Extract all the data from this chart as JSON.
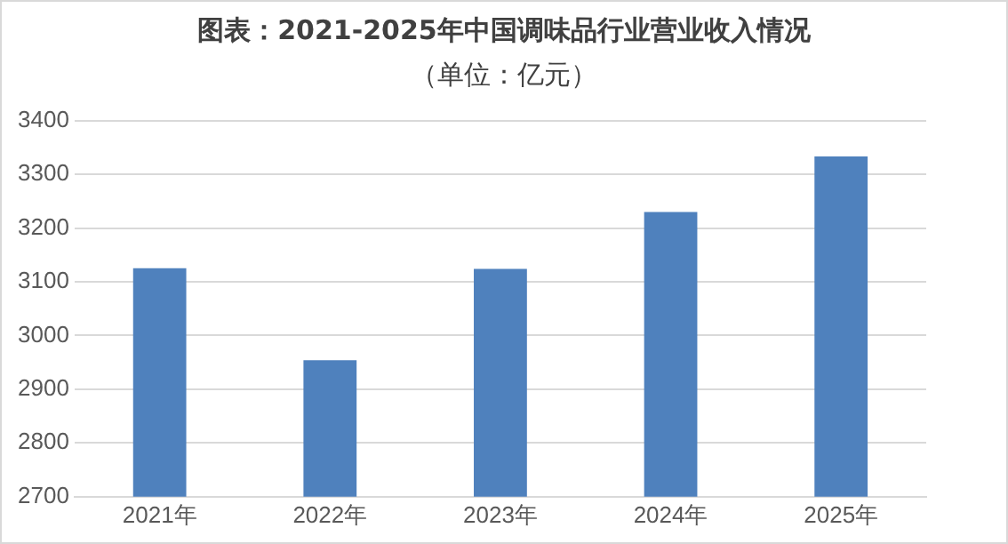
{
  "chart_data": {
    "type": "bar",
    "title": "图表：2021-2025年中国调味品行业营业收入情况",
    "subtitle": "（单位：亿元）",
    "categories": [
      "2021年",
      "2022年",
      "2023年",
      "2024年",
      "2025年"
    ],
    "values": [
      3125,
      2954,
      3124,
      3230,
      3333
    ],
    "color": "#4f81bd",
    "ylim": [
      2700,
      3400
    ],
    "yticks": [
      2700,
      2800,
      2900,
      3000,
      3100,
      3200,
      3300,
      3400
    ],
    "grid": "y",
    "legend": false
  }
}
